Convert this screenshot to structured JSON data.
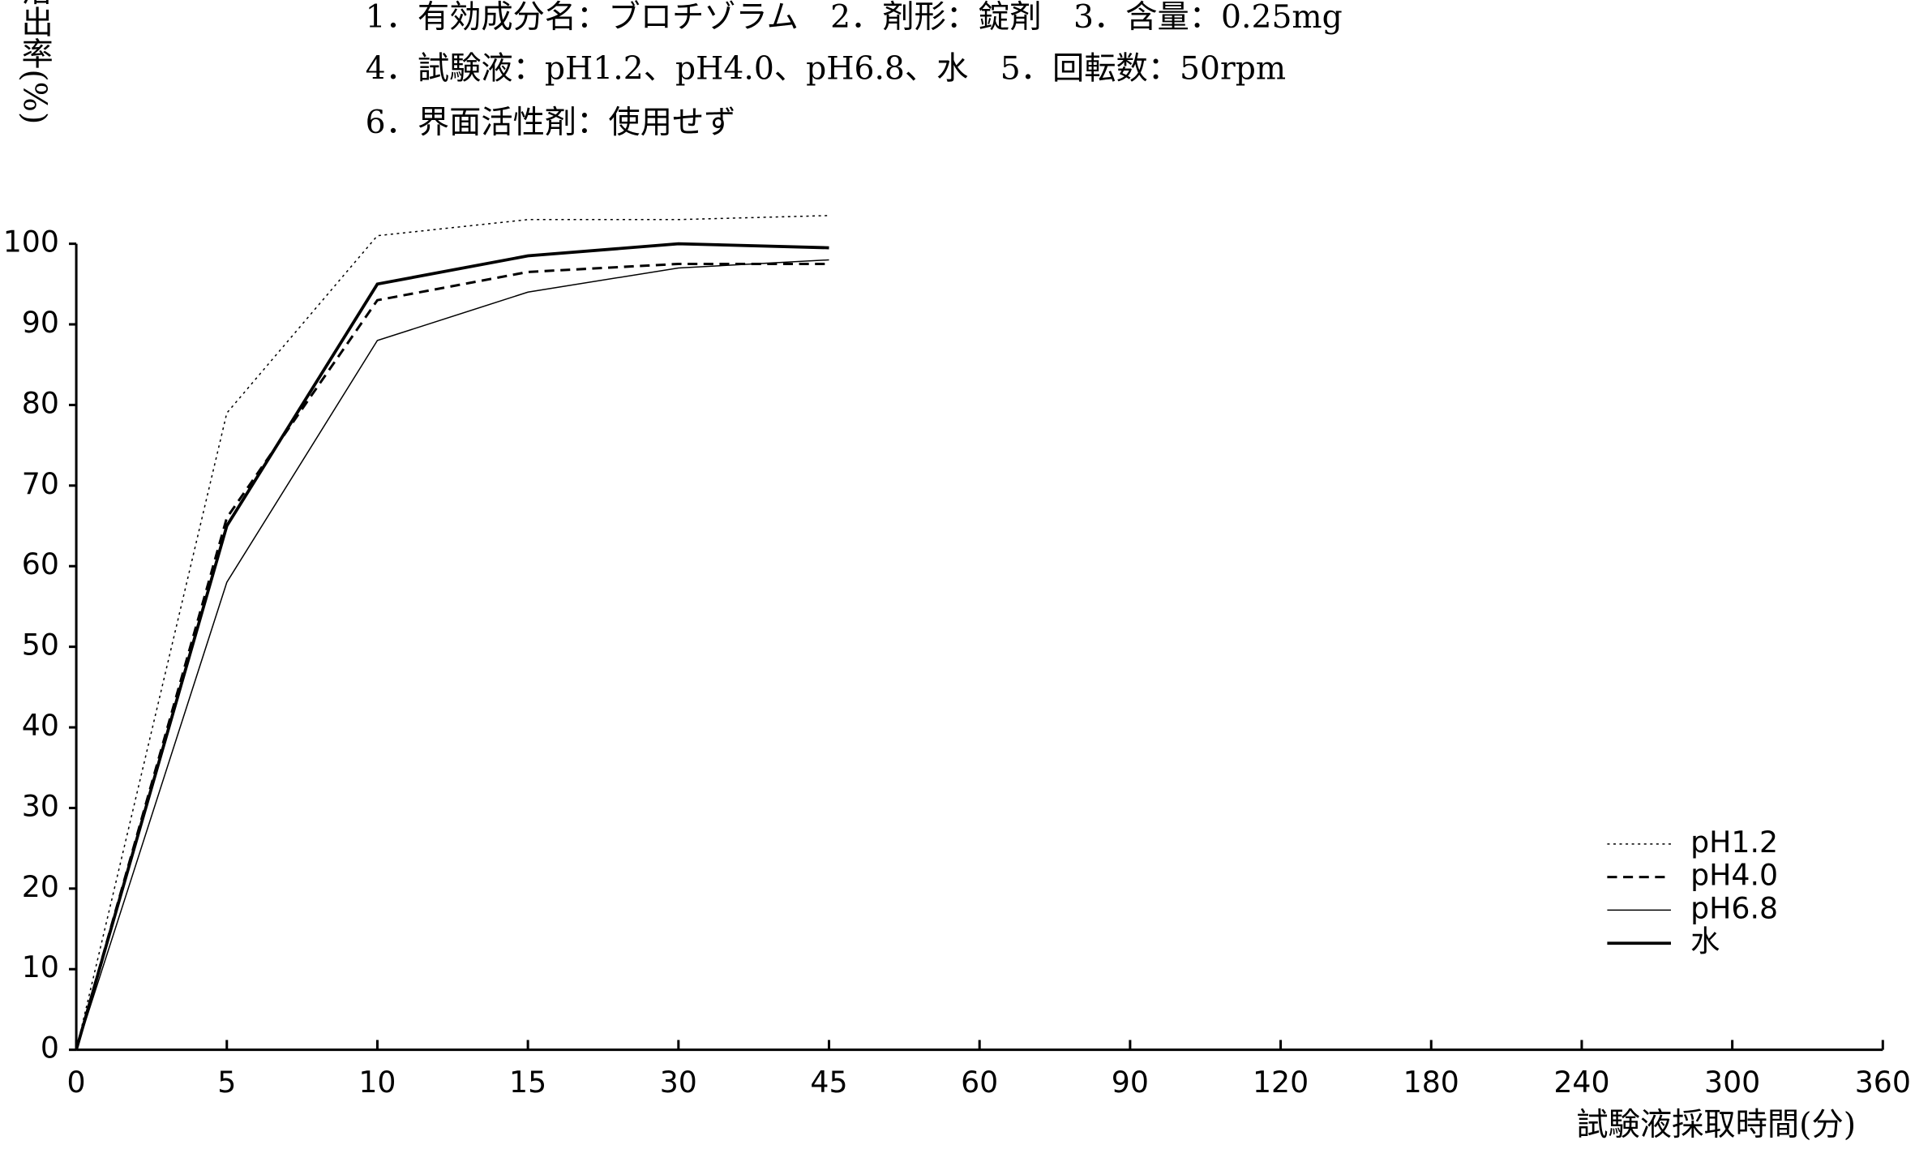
{
  "chart_data": {
    "type": "line",
    "notes": [
      "1．有効成分名：ブロチゾラム　2．剤形：錠剤　3．含量：0.25mg",
      "4．試験液：pH1.2、pH4.0、pH6.8、水　5．回転数：50rpm",
      "6．界面活性剤：使用せず"
    ],
    "y_label": "溶出率(%)",
    "x_label": "試験液採取時間(分)",
    "categories": [
      "0",
      "5",
      "10",
      "15",
      "30",
      "45",
      "60",
      "90",
      "120",
      "180",
      "240",
      "300",
      "360"
    ],
    "series": [
      {
        "name": "pH1.2",
        "color": "#000000",
        "dash": "2,3",
        "width": 1,
        "values": [
          0,
          79,
          101,
          103,
          103,
          103.5,
          null,
          null,
          null,
          null,
          null,
          null,
          null
        ]
      },
      {
        "name": "pH4.0",
        "color": "#000000",
        "dash": "8,5",
        "width": 2,
        "values": [
          0,
          66,
          93,
          96.5,
          97.5,
          97.5,
          null,
          null,
          null,
          null,
          null,
          null,
          null
        ]
      },
      {
        "name": "pH6.8",
        "color": "#000000",
        "dash": "none",
        "width": 1,
        "values": [
          0,
          58,
          88,
          94,
          97,
          98,
          null,
          null,
          null,
          null,
          null,
          null,
          null
        ]
      },
      {
        "name": "水",
        "color": "#000000",
        "dash": "none",
        "width": 2.5,
        "values": [
          0,
          65,
          95,
          98.5,
          100,
          99.5,
          null,
          null,
          null,
          null,
          null,
          null,
          null
        ]
      }
    ],
    "ylim": [
      0,
      100
    ],
    "yticks": [
      0,
      10,
      20,
      30,
      40,
      50,
      60,
      70,
      80,
      90,
      100
    ],
    "legend": "lower right",
    "grid": false
  }
}
